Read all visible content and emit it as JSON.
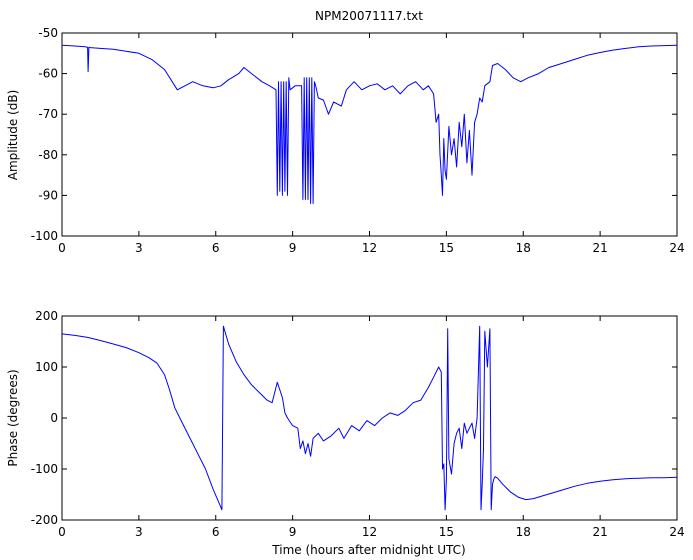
{
  "chart_data": [
    {
      "type": "line",
      "title": "NPM20071117.txt",
      "xlabel": "",
      "ylabel": "Amplitude (dB)",
      "xlim": [
        0,
        24
      ],
      "ylim": [
        -100,
        -50
      ],
      "xticks": [
        0,
        3,
        6,
        9,
        12,
        15,
        18,
        21,
        24
      ],
      "yticks": [
        -100,
        -90,
        -80,
        -70,
        -60,
        -50
      ],
      "grid": false,
      "color": "#0000ff",
      "series": [
        {
          "x": [
            0,
            0.5,
            0.9,
            1.0,
            1.02,
            1.05,
            1.1,
            1.5,
            2.0,
            2.5,
            3.0,
            3.5,
            4.0,
            4.3,
            4.5,
            4.8,
            5.1,
            5.5,
            5.9,
            6.2,
            6.5,
            6.9,
            7.1,
            7.4,
            7.8,
            8.1,
            8.35,
            8.4,
            8.45,
            8.5,
            8.55,
            8.6,
            8.65,
            8.7,
            8.75,
            8.8,
            8.85,
            8.9,
            9.1,
            9.35,
            9.4,
            9.45,
            9.5,
            9.55,
            9.6,
            9.65,
            9.7,
            9.75,
            9.8,
            9.85,
            9.9,
            10.0,
            10.2,
            10.4,
            10.6,
            10.9,
            11.1,
            11.4,
            11.7,
            12.0,
            12.3,
            12.6,
            12.9,
            13.2,
            13.5,
            13.8,
            14.1,
            14.3,
            14.5,
            14.6,
            14.7,
            14.75,
            14.8,
            14.85,
            14.9,
            14.95,
            15.0,
            15.1,
            15.2,
            15.3,
            15.4,
            15.5,
            15.6,
            15.7,
            15.8,
            15.9,
            16.0,
            16.1,
            16.2,
            16.3,
            16.4,
            16.5,
            16.7,
            16.8,
            17.0,
            17.3,
            17.6,
            17.9,
            18.2,
            18.6,
            19.0,
            19.5,
            20.0,
            20.5,
            21.0,
            21.5,
            22.0,
            22.5,
            23.0,
            23.5,
            24.0
          ],
          "values": [
            -53.0,
            -53.2,
            -53.4,
            -53.5,
            -59.5,
            -53.5,
            -53.6,
            -53.8,
            -54.0,
            -54.5,
            -55.0,
            -56.5,
            -59.0,
            -62.0,
            -64.0,
            -63.0,
            -62.0,
            -63.0,
            -63.5,
            -63.0,
            -61.5,
            -60.0,
            -58.5,
            -60.0,
            -62.0,
            -63.0,
            -64.0,
            -90.0,
            -62.0,
            -89.0,
            -62.0,
            -90.0,
            -62.0,
            -89.0,
            -62.0,
            -90.0,
            -61.0,
            -64.0,
            -63.0,
            -63.0,
            -91.0,
            -61.0,
            -91.0,
            -61.0,
            -91.0,
            -61.0,
            -92.0,
            -61.0,
            -92.0,
            -62.0,
            -63.0,
            -66.0,
            -66.5,
            -70.0,
            -67.0,
            -68.0,
            -64.0,
            -62.0,
            -64.0,
            -63.0,
            -62.5,
            -64.0,
            -63.0,
            -65.0,
            -63.0,
            -62.0,
            -64.0,
            -63.0,
            -65.0,
            -72.0,
            -70.0,
            -80.0,
            -85.0,
            -90.0,
            -76.0,
            -84.0,
            -86.0,
            -73.0,
            -80.0,
            -76.0,
            -83.0,
            -72.0,
            -78.0,
            -70.0,
            -82.0,
            -74.0,
            -85.0,
            -72.0,
            -70.0,
            -66.0,
            -67.0,
            -63.0,
            -62.0,
            -58.0,
            -57.5,
            -59.0,
            -61.0,
            -62.0,
            -61.0,
            -60.0,
            -58.5,
            -57.5,
            -56.5,
            -55.5,
            -54.8,
            -54.2,
            -53.8,
            -53.4,
            -53.2,
            -53.1,
            -53.0
          ]
        }
      ]
    },
    {
      "type": "line",
      "title": "",
      "xlabel": "Time (hours after midnight UTC)",
      "ylabel": "Phase (degrees)",
      "xlim": [
        0,
        24
      ],
      "ylim": [
        -200,
        200
      ],
      "xticks": [
        0,
        3,
        6,
        9,
        12,
        15,
        18,
        21,
        24
      ],
      "yticks": [
        -200,
        -100,
        0,
        100,
        200
      ],
      "grid": false,
      "color": "#0000ff",
      "series": [
        {
          "x": [
            0,
            0.5,
            1.0,
            1.5,
            2.0,
            2.5,
            3.0,
            3.4,
            3.7,
            4.0,
            4.2,
            4.4,
            4.7,
            5.0,
            5.3,
            5.6,
            5.9,
            6.2,
            6.24,
            6.3,
            6.5,
            6.8,
            7.1,
            7.4,
            7.7,
            8.0,
            8.2,
            8.4,
            8.6,
            8.7,
            8.8,
            9.0,
            9.2,
            9.3,
            9.4,
            9.5,
            9.6,
            9.7,
            9.8,
            10.0,
            10.2,
            10.5,
            10.8,
            11.0,
            11.3,
            11.6,
            11.9,
            12.2,
            12.5,
            12.8,
            13.1,
            13.4,
            13.7,
            14.0,
            14.3,
            14.5,
            14.7,
            14.8,
            14.85,
            14.9,
            14.95,
            15.0,
            15.05,
            15.1,
            15.2,
            15.3,
            15.4,
            15.5,
            15.6,
            15.7,
            15.8,
            15.9,
            16.0,
            16.1,
            16.2,
            16.3,
            16.35,
            16.4,
            16.45,
            16.5,
            16.6,
            16.7,
            16.75,
            16.8,
            16.85,
            16.9,
            17.0,
            17.2,
            17.5,
            17.8,
            18.1,
            18.4,
            18.8,
            19.2,
            19.6,
            20.0,
            20.5,
            21.0,
            21.5,
            22.0,
            22.5,
            23.0,
            23.5,
            24.0
          ],
          "values": [
            165,
            162,
            158,
            152,
            145,
            138,
            128,
            118,
            108,
            85,
            55,
            20,
            -10,
            -40,
            -70,
            -100,
            -140,
            -175,
            -180,
            180,
            145,
            110,
            85,
            65,
            50,
            35,
            30,
            70,
            40,
            10,
            0,
            -15,
            -20,
            -60,
            -45,
            -70,
            -50,
            -75,
            -40,
            -30,
            -45,
            -35,
            -20,
            -40,
            -15,
            -25,
            -5,
            -15,
            0,
            10,
            5,
            15,
            30,
            35,
            60,
            80,
            100,
            90,
            -100,
            -90,
            -180,
            -120,
            175,
            -80,
            -110,
            -50,
            -30,
            -20,
            -60,
            -10,
            -30,
            -20,
            -10,
            -40,
            0,
            180,
            -180,
            -130,
            -60,
            170,
            100,
            175,
            -180,
            -130,
            -120,
            -115,
            -118,
            -130,
            -145,
            -155,
            -160,
            -158,
            -152,
            -146,
            -140,
            -134,
            -128,
            -124,
            -121,
            -119,
            -118,
            -117,
            -117,
            -116
          ]
        }
      ]
    }
  ]
}
